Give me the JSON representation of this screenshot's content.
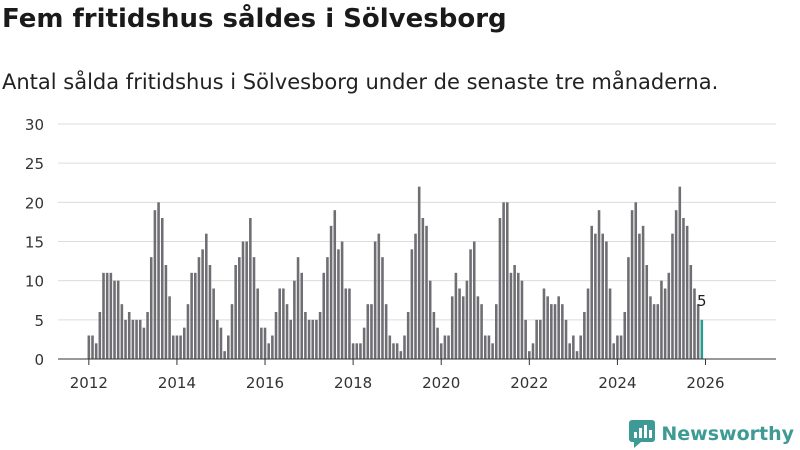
{
  "header": {
    "title": "Fem fritidshus såldes i Sölvesborg",
    "subtitle": "Antal sålda fritidshus i Sölvesborg under de senaste tre månaderna."
  },
  "brand": {
    "name": "Newsworthy",
    "icon": "newsworthy-logo-icon",
    "color": "#3d9a94"
  },
  "colors": {
    "bar": "#6e6e73",
    "highlight": "#2a9d8f"
  },
  "chart_data": {
    "type": "bar",
    "title": "Fem fritidshus såldes i Sölvesborg",
    "subtitle": "Antal sålda fritidshus i Sölvesborg under de senaste tre månaderna.",
    "xlabel": "",
    "ylabel": "",
    "ylim": [
      0,
      30
    ],
    "yticks": [
      0,
      5,
      10,
      15,
      20,
      25,
      30
    ],
    "xlim": [
      2011.3,
      2027.6
    ],
    "xticks": [
      2012,
      2014,
      2016,
      2018,
      2020,
      2022,
      2024,
      2026
    ],
    "x_start": 2012.0,
    "x_step": 0.08333,
    "grid": true,
    "values": [
      3,
      3,
      2,
      6,
      11,
      11,
      11,
      10,
      10,
      7,
      5,
      6,
      5,
      5,
      5,
      4,
      6,
      13,
      19,
      20,
      18,
      12,
      8,
      3,
      3,
      3,
      4,
      7,
      11,
      11,
      13,
      14,
      16,
      12,
      9,
      5,
      4,
      1,
      3,
      7,
      12,
      13,
      15,
      15,
      18,
      13,
      9,
      4,
      4,
      2,
      3,
      6,
      9,
      9,
      7,
      5,
      10,
      13,
      11,
      6,
      5,
      5,
      5,
      6,
      11,
      13,
      17,
      19,
      14,
      15,
      9,
      9,
      2,
      2,
      2,
      4,
      7,
      7,
      15,
      16,
      13,
      7,
      3,
      2,
      2,
      1,
      3,
      6,
      14,
      16,
      22,
      18,
      17,
      10,
      6,
      4,
      2,
      3,
      3,
      8,
      11,
      9,
      8,
      10,
      14,
      15,
      8,
      7,
      3,
      3,
      2,
      7,
      18,
      20,
      20,
      11,
      12,
      11,
      10,
      5,
      1,
      2,
      5,
      5,
      9,
      8,
      7,
      7,
      8,
      7,
      5,
      2,
      3,
      1,
      3,
      6,
      9,
      17,
      16,
      19,
      16,
      15,
      9,
      2,
      3,
      3,
      6,
      13,
      19,
      20,
      16,
      17,
      12,
      8,
      7,
      7,
      10,
      9,
      11,
      16,
      19,
      22,
      18,
      17,
      12,
      9,
      7,
      5
    ],
    "highlight_last": true,
    "data_labels": [
      {
        "index": 167,
        "text": "5"
      }
    ]
  }
}
